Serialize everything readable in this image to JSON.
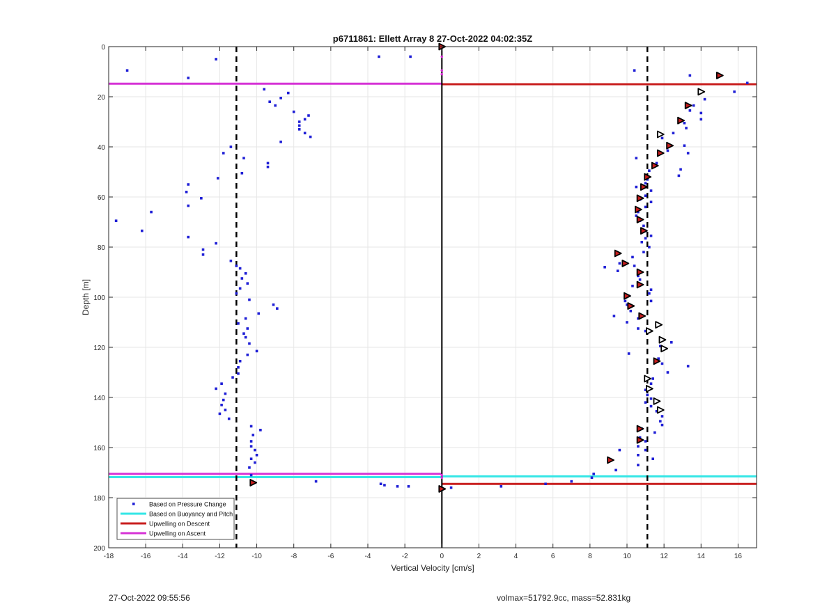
{
  "chart_data": {
    "type": "scatter",
    "title": "p6711861: Ellett Array 8 27-Oct-2022 04:02:35Z",
    "xlabel": "Vertical Velocity [cm/s]",
    "ylabel": "Depth [m]",
    "xlim": [
      -18,
      17
    ],
    "ylim": [
      200,
      0
    ],
    "y_reversed": true,
    "grid": true,
    "xticks": [
      -18,
      -16,
      -14,
      -12,
      -10,
      -8,
      -6,
      -4,
      -2,
      0,
      2,
      4,
      6,
      8,
      10,
      12,
      14,
      16
    ],
    "yticks": [
      0,
      20,
      40,
      60,
      80,
      100,
      120,
      140,
      160,
      180,
      200
    ],
    "legend_position": "bottom-left",
    "colors": {
      "pressure": "#1f1fd6",
      "buoyancy": "#33e6e6",
      "descent": "#c81e1e",
      "ascent": "#d633d6",
      "marker_fill": "#c81e1e"
    },
    "legend": [
      {
        "label": "Based on Pressure Change",
        "style": "dot",
        "color": "#1f1fd6"
      },
      {
        "label": "Based on Buoyancy and Pitch",
        "style": "line",
        "color": "#33e6e6"
      },
      {
        "label": "Upwelling on Descent",
        "style": "line",
        "color": "#c81e1e"
      },
      {
        "label": "Upwelling on Ascent",
        "style": "line",
        "color": "#d633d6"
      }
    ],
    "dashed_lines_x": [
      -11.1,
      11.1
    ],
    "zero_line_x": 0,
    "pressure_change": [
      [
        -17.0,
        9.5
      ],
      [
        -12.2,
        5
      ],
      [
        -13.7,
        12.5
      ],
      [
        -3.4,
        4
      ],
      [
        -1.7,
        4
      ],
      [
        -9.6,
        17
      ],
      [
        -9.3,
        22
      ],
      [
        -9.0,
        23.5
      ],
      [
        -8.7,
        20.5
      ],
      [
        -8.3,
        18.5
      ],
      [
        -8.0,
        26
      ],
      [
        -7.4,
        29
      ],
      [
        -7.2,
        27.5
      ],
      [
        -7.7,
        30
      ],
      [
        -7.7,
        31.5
      ],
      [
        -7.7,
        33
      ],
      [
        -7.4,
        34.5
      ],
      [
        -7.1,
        36
      ],
      [
        -8.7,
        38
      ],
      [
        -11.4,
        40
      ],
      [
        -11.8,
        42.5
      ],
      [
        -10.7,
        44.5
      ],
      [
        -9.4,
        46.5
      ],
      [
        -9.4,
        48
      ],
      [
        -10.8,
        50.5
      ],
      [
        -12.1,
        52.5
      ],
      [
        -13.7,
        55
      ],
      [
        -13.8,
        58
      ],
      [
        -13.0,
        60.5
      ],
      [
        -13.7,
        63.5
      ],
      [
        -15.7,
        66
      ],
      [
        -17.6,
        69.5
      ],
      [
        -16.2,
        73.5
      ],
      [
        -13.7,
        76
      ],
      [
        -12.2,
        78.5
      ],
      [
        -12.9,
        81
      ],
      [
        -12.9,
        83
      ],
      [
        -11.4,
        85.5
      ],
      [
        -11.1,
        87.5
      ],
      [
        -10.9,
        88.5
      ],
      [
        -10.6,
        90.5
      ],
      [
        -10.8,
        92.5
      ],
      [
        -10.5,
        94.5
      ],
      [
        -10.9,
        96.5
      ],
      [
        -11.1,
        98.5
      ],
      [
        -10.4,
        101
      ],
      [
        -9.1,
        103
      ],
      [
        -8.9,
        104.5
      ],
      [
        -9.9,
        106.5
      ],
      [
        -10.6,
        108.5
      ],
      [
        -11.0,
        110.5
      ],
      [
        -10.5,
        112.5
      ],
      [
        -10.7,
        114.5
      ],
      [
        -10.6,
        116
      ],
      [
        -10.4,
        118.5
      ],
      [
        -10.0,
        121.5
      ],
      [
        -10.5,
        123
      ],
      [
        -10.9,
        125.5
      ],
      [
        -11.0,
        128
      ],
      [
        -11.0,
        130.5
      ],
      [
        -11.3,
        132
      ],
      [
        -11.9,
        134.5
      ],
      [
        -12.2,
        136.5
      ],
      [
        -11.7,
        138.5
      ],
      [
        -11.8,
        141
      ],
      [
        -11.9,
        143
      ],
      [
        -11.7,
        145
      ],
      [
        -12.0,
        146.5
      ],
      [
        -11.5,
        148.5
      ],
      [
        -10.3,
        151.5
      ],
      [
        -9.8,
        153
      ],
      [
        -10.2,
        155
      ],
      [
        -10.3,
        157.5
      ],
      [
        -10.3,
        159.5
      ],
      [
        -10.1,
        161
      ],
      [
        -10.0,
        163
      ],
      [
        -10.3,
        164.5
      ],
      [
        -10.1,
        166
      ],
      [
        -10.4,
        168
      ],
      [
        -10.3,
        171
      ],
      [
        -10.3,
        173.5
      ],
      [
        -6.8,
        173.5
      ],
      [
        -3.3,
        174.5
      ],
      [
        -3.1,
        175
      ],
      [
        -2.4,
        175.5
      ],
      [
        -1.8,
        175.5
      ],
      [
        0.5,
        176
      ],
      [
        3.2,
        175.5
      ],
      [
        5.6,
        174.5
      ],
      [
        7.0,
        173.5
      ],
      [
        8.2,
        170.5
      ],
      [
        8.1,
        172
      ],
      [
        10.4,
        9.5
      ],
      [
        13.4,
        11.5
      ],
      [
        16.5,
        14.5
      ],
      [
        15.8,
        18
      ],
      [
        14.2,
        21
      ],
      [
        13.6,
        23.5
      ],
      [
        13.4,
        25.5
      ],
      [
        14.0,
        26.5
      ],
      [
        14.0,
        29
      ],
      [
        13.1,
        30.5
      ],
      [
        13.2,
        32.5
      ],
      [
        12.5,
        34.5
      ],
      [
        11.9,
        36.5
      ],
      [
        13.1,
        39.5
      ],
      [
        13.3,
        42.5
      ],
      [
        12.2,
        41.5
      ],
      [
        10.5,
        44.5
      ],
      [
        11.6,
        46.5
      ],
      [
        11.2,
        49.5
      ],
      [
        12.9,
        49
      ],
      [
        12.8,
        51.5
      ],
      [
        11.1,
        53
      ],
      [
        11.0,
        54.5
      ],
      [
        10.5,
        56
      ],
      [
        11.3,
        57.5
      ],
      [
        11.0,
        59.5
      ],
      [
        10.7,
        61
      ],
      [
        11.3,
        62
      ],
      [
        11.0,
        64
      ],
      [
        10.6,
        66
      ],
      [
        10.5,
        67.5
      ],
      [
        10.7,
        69.5
      ],
      [
        10.9,
        71.5
      ],
      [
        11.0,
        73.5
      ],
      [
        11.3,
        75.5
      ],
      [
        11.0,
        76.5
      ],
      [
        10.8,
        78
      ],
      [
        11.2,
        80
      ],
      [
        10.9,
        82
      ],
      [
        9.4,
        82.5
      ],
      [
        10.3,
        84
      ],
      [
        8.8,
        88
      ],
      [
        9.6,
        86.5
      ],
      [
        9.5,
        89.5
      ],
      [
        10.4,
        87.5
      ],
      [
        10.6,
        91.5
      ],
      [
        10.7,
        93
      ],
      [
        10.3,
        95.5
      ],
      [
        11.3,
        97
      ],
      [
        11.2,
        98.5
      ],
      [
        10.1,
        99.5
      ],
      [
        11.3,
        101.5
      ],
      [
        9.9,
        101.5
      ],
      [
        10.0,
        103
      ],
      [
        10.2,
        105.5
      ],
      [
        9.3,
        107.5
      ],
      [
        10.6,
        108.5
      ],
      [
        10.0,
        110
      ],
      [
        10.6,
        112.5
      ],
      [
        11.0,
        113.5
      ],
      [
        12.4,
        118
      ],
      [
        11.8,
        119.5
      ],
      [
        10.1,
        122.5
      ],
      [
        11.7,
        124.5
      ],
      [
        11.9,
        126.5
      ],
      [
        13.3,
        127.5
      ],
      [
        12.2,
        130
      ],
      [
        11.4,
        132.5
      ],
      [
        11.3,
        134.5
      ],
      [
        11.0,
        137
      ],
      [
        11.1,
        139
      ],
      [
        11.3,
        140.5
      ],
      [
        11.0,
        142
      ],
      [
        11.3,
        143.5
      ],
      [
        11.6,
        145.5
      ],
      [
        11.9,
        147.5
      ],
      [
        11.8,
        149.5
      ],
      [
        11.9,
        151
      ],
      [
        10.8,
        152.5
      ],
      [
        11.5,
        154
      ],
      [
        10.7,
        156
      ],
      [
        11.0,
        157.5
      ],
      [
        10.6,
        159.5
      ],
      [
        11.0,
        161
      ],
      [
        10.6,
        163
      ],
      [
        11.4,
        164.5
      ],
      [
        10.6,
        167
      ],
      [
        9.6,
        161
      ],
      [
        9.0,
        165.5
      ],
      [
        9.4,
        169
      ]
    ],
    "markers_filled": [
      [
        0.0,
        0
      ],
      [
        15.0,
        11.5
      ],
      [
        13.3,
        23.5
      ],
      [
        12.9,
        29.5
      ],
      [
        12.3,
        39.5
      ],
      [
        11.8,
        42.5
      ],
      [
        11.5,
        47.5
      ],
      [
        11.1,
        52
      ],
      [
        10.9,
        56
      ],
      [
        10.7,
        60.5
      ],
      [
        10.6,
        65
      ],
      [
        10.7,
        69
      ],
      [
        10.9,
        73.5
      ],
      [
        9.5,
        82.5
      ],
      [
        9.9,
        86.5
      ],
      [
        10.7,
        90
      ],
      [
        10.7,
        95
      ],
      [
        10.0,
        99.5
      ],
      [
        10.2,
        103.5
      ],
      [
        10.8,
        107.5
      ],
      [
        11.6,
        125.5
      ],
      [
        10.7,
        152.5
      ],
      [
        10.7,
        157
      ],
      [
        9.1,
        165
      ],
      [
        -10.2,
        174
      ],
      [
        0.0,
        176.5
      ]
    ],
    "markers_open": [
      [
        14.0,
        18
      ],
      [
        11.8,
        35
      ],
      [
        11.7,
        111
      ],
      [
        11.9,
        117
      ],
      [
        12.0,
        120.5
      ],
      [
        11.2,
        113.5
      ],
      [
        11.1,
        132.5
      ],
      [
        11.2,
        136.5
      ],
      [
        11.6,
        141.5
      ],
      [
        11.8,
        145
      ]
    ],
    "horizontal_lines": [
      {
        "kind": "ascent",
        "y": 14.8,
        "x_from": -18,
        "x_to": 0
      },
      {
        "kind": "descent",
        "y": 15.0,
        "x_from": 0,
        "x_to": 17
      },
      {
        "kind": "ascent",
        "y": 170.5,
        "x_from": -18,
        "x_to": 0
      },
      {
        "kind": "buoyancy",
        "y": 171.8,
        "x_from": -18,
        "x_to": 0
      },
      {
        "kind": "buoyancy",
        "y": 171.5,
        "x_from": 0,
        "x_to": 17
      },
      {
        "kind": "descent",
        "y": 174.5,
        "x_from": 0,
        "x_to": 17
      }
    ]
  },
  "footer": {
    "timestamp": "27-Oct-2022 09:55:56",
    "info": "volmax=51792.9cc, mass=52.831kg"
  }
}
